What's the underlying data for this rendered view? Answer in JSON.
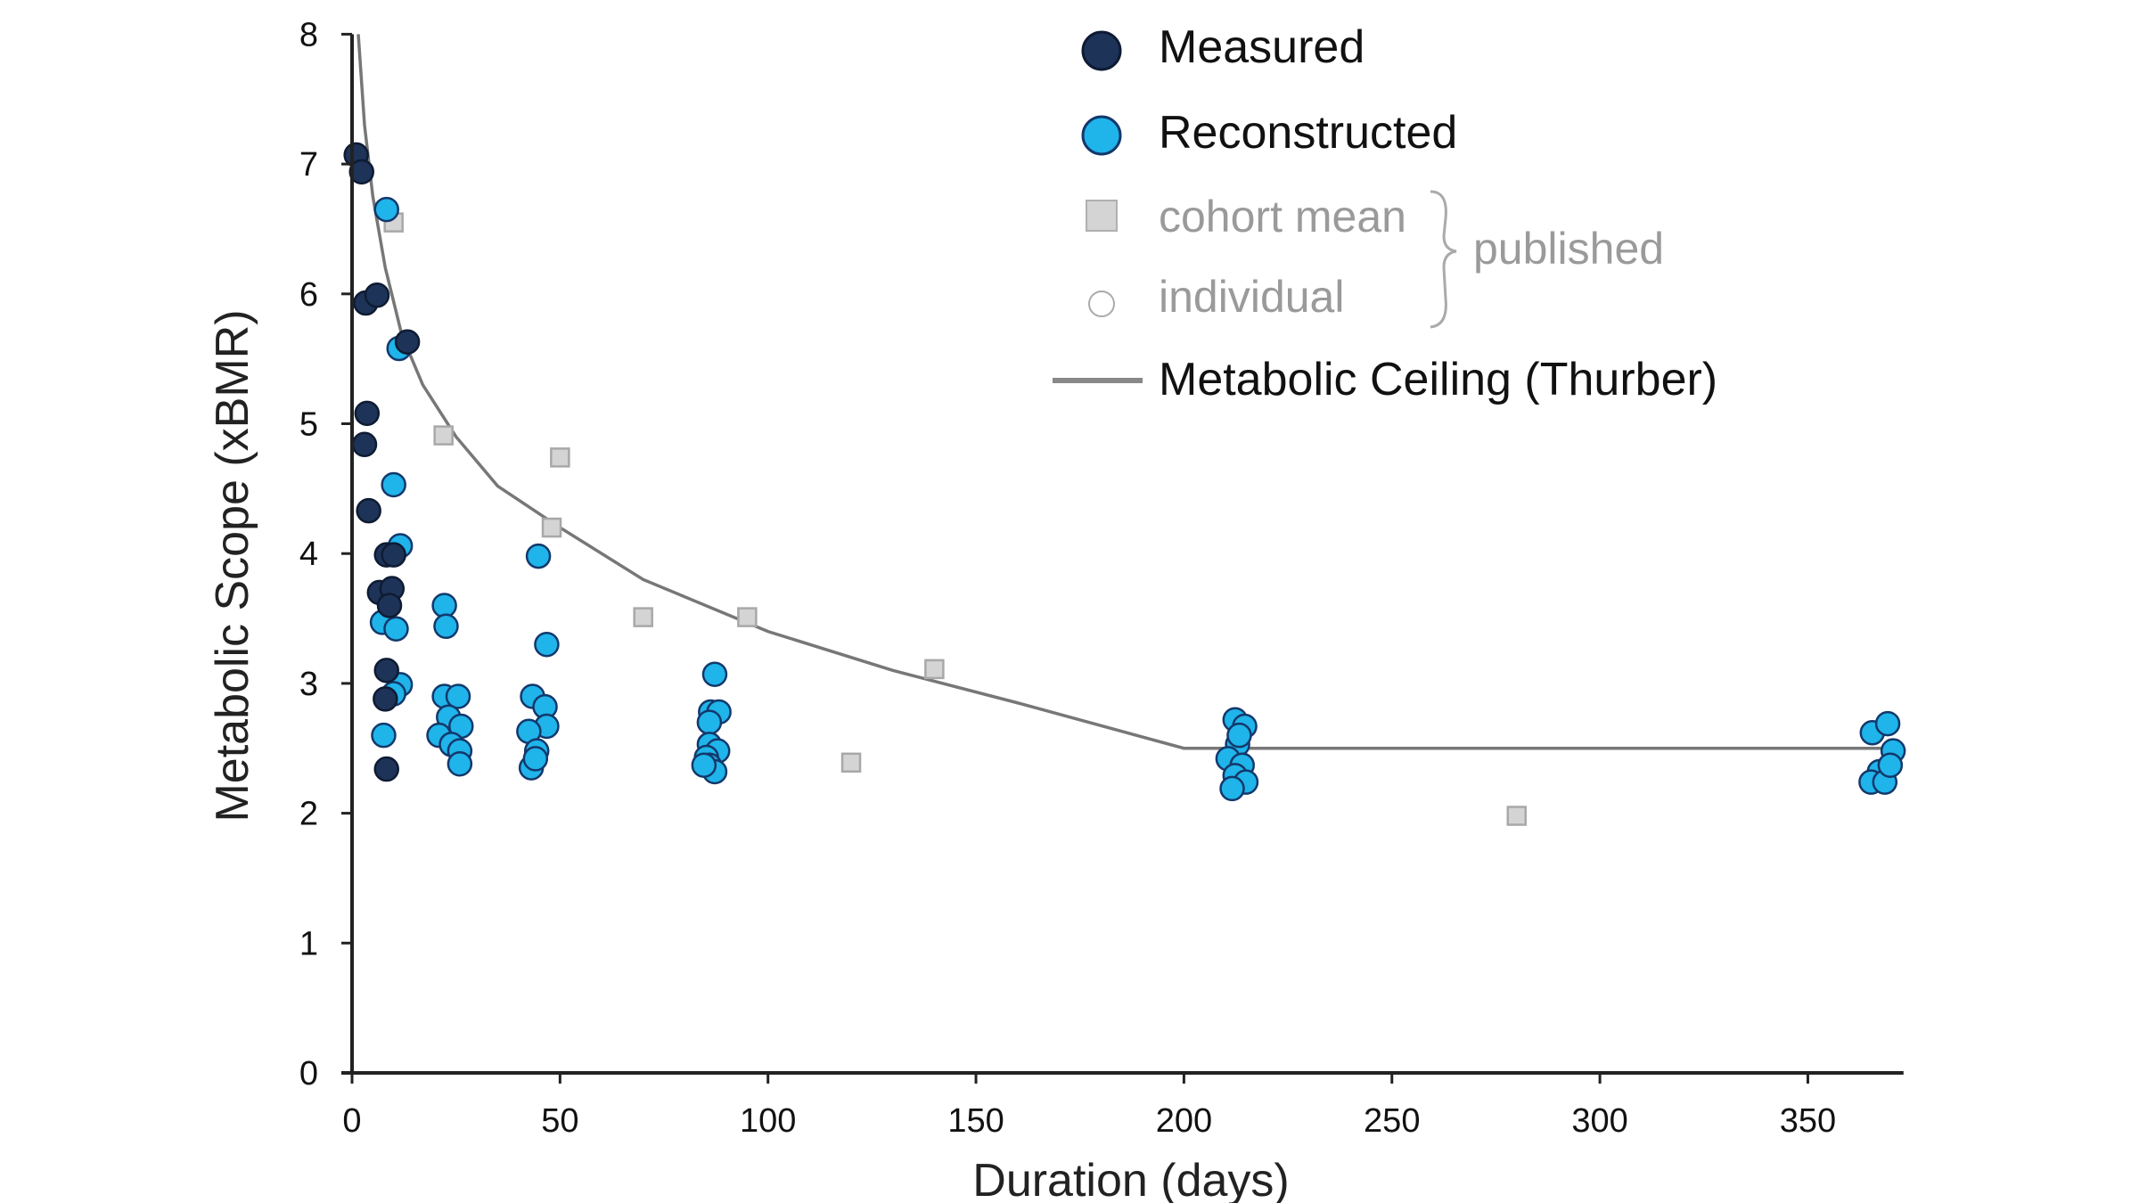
{
  "chart_data": {
    "type": "scatter",
    "title": "",
    "xlabel": "Duration (days)",
    "ylabel": "Metabolic Scope (xBMR)",
    "xlim": [
      0,
      373
    ],
    "ylim": [
      0,
      8
    ],
    "xticks": [
      0,
      50,
      100,
      150,
      200,
      250,
      300,
      350
    ],
    "yticks": [
      0,
      1,
      2,
      3,
      4,
      5,
      6,
      7,
      8
    ],
    "grid": false,
    "legend_position": "top-right",
    "legend": {
      "measured": "Measured",
      "reconstructed": "Reconstructed",
      "cohort_mean": "cohort mean",
      "individual": "individual",
      "published": "published",
      "ceiling": "Metabolic Ceiling (Thurber)"
    },
    "colors": {
      "measured": "#1e3358",
      "reconstructed": "#1fb4ea",
      "marker_edge": "#13386b",
      "cohort_mean": "#d4d4d4",
      "ceiling": "#777777",
      "axis": "#222222"
    },
    "series": [
      {
        "name": "Reconstructed",
        "points": [
          [
            8.3,
            6.65
          ],
          [
            11.3,
            5.58
          ],
          [
            10,
            4.53
          ],
          [
            11.6,
            4.06
          ],
          [
            7.3,
            3.47
          ],
          [
            10.6,
            3.42
          ],
          [
            11.6,
            2.99
          ],
          [
            10,
            2.92
          ],
          [
            7.6,
            2.6
          ],
          [
            22.2,
            3.6
          ],
          [
            22.6,
            3.44
          ],
          [
            22.2,
            2.9
          ],
          [
            25.5,
            2.9
          ],
          [
            23.2,
            2.74
          ],
          [
            26.2,
            2.67
          ],
          [
            20.9,
            2.6
          ],
          [
            23.9,
            2.53
          ],
          [
            25.9,
            2.48
          ],
          [
            25.9,
            2.38
          ],
          [
            44.8,
            3.98
          ],
          [
            46.8,
            3.3
          ],
          [
            43.4,
            2.9
          ],
          [
            46.4,
            2.82
          ],
          [
            46.8,
            2.67
          ],
          [
            42.5,
            2.63
          ],
          [
            44.4,
            2.48
          ],
          [
            43.1,
            2.35
          ],
          [
            44.1,
            2.42
          ],
          [
            87.2,
            3.07
          ],
          [
            86.2,
            2.78
          ],
          [
            88.2,
            2.78
          ],
          [
            85.9,
            2.7
          ],
          [
            85.9,
            2.53
          ],
          [
            87.9,
            2.48
          ],
          [
            85.2,
            2.43
          ],
          [
            85.9,
            2.37
          ],
          [
            87.2,
            2.32
          ],
          [
            84.6,
            2.37
          ],
          [
            212.3,
            2.72
          ],
          [
            214.6,
            2.67
          ],
          [
            212.9,
            2.53
          ],
          [
            210.6,
            2.42
          ],
          [
            214,
            2.37
          ],
          [
            212.3,
            2.29
          ],
          [
            214.9,
            2.24
          ],
          [
            211.6,
            2.19
          ],
          [
            213.3,
            2.6
          ],
          [
            365.5,
            2.62
          ],
          [
            369.2,
            2.69
          ],
          [
            370.5,
            2.48
          ],
          [
            367.2,
            2.32
          ],
          [
            365.2,
            2.24
          ],
          [
            368.5,
            2.24
          ],
          [
            369.8,
            2.37
          ]
        ]
      },
      {
        "name": "Measured",
        "points": [
          [
            1,
            7.07
          ],
          [
            2.3,
            6.94
          ],
          [
            3.3,
            5.93
          ],
          [
            6,
            5.99
          ],
          [
            3.6,
            5.08
          ],
          [
            3,
            4.84
          ],
          [
            4,
            4.33
          ],
          [
            13.3,
            5.63
          ],
          [
            8.3,
            3.99
          ],
          [
            10,
            3.99
          ],
          [
            6.6,
            3.7
          ],
          [
            9.6,
            3.73
          ],
          [
            9,
            3.6
          ],
          [
            8.3,
            3.1
          ],
          [
            8,
            2.88
          ],
          [
            8.3,
            2.34
          ]
        ]
      },
      {
        "name": "cohort mean",
        "points": [
          [
            10,
            6.55
          ],
          [
            22,
            4.91
          ],
          [
            50,
            4.74
          ],
          [
            48,
            4.2
          ],
          [
            70,
            3.51
          ],
          [
            95,
            3.51
          ],
          [
            140,
            3.11
          ],
          [
            120,
            2.39
          ],
          [
            280,
            1.98
          ]
        ]
      },
      {
        "name": "Metabolic Ceiling (Thurber)",
        "line": [
          [
            1.5,
            8
          ],
          [
            3,
            7.3
          ],
          [
            5,
            6.75
          ],
          [
            8,
            6.2
          ],
          [
            12,
            5.68
          ],
          [
            17,
            5.3
          ],
          [
            25,
            4.9
          ],
          [
            35,
            4.52
          ],
          [
            50,
            4.2
          ],
          [
            70,
            3.8
          ],
          [
            100,
            3.4
          ],
          [
            130,
            3.1
          ],
          [
            160,
            2.85
          ],
          [
            200,
            2.5
          ],
          [
            373,
            2.5
          ]
        ]
      }
    ]
  }
}
